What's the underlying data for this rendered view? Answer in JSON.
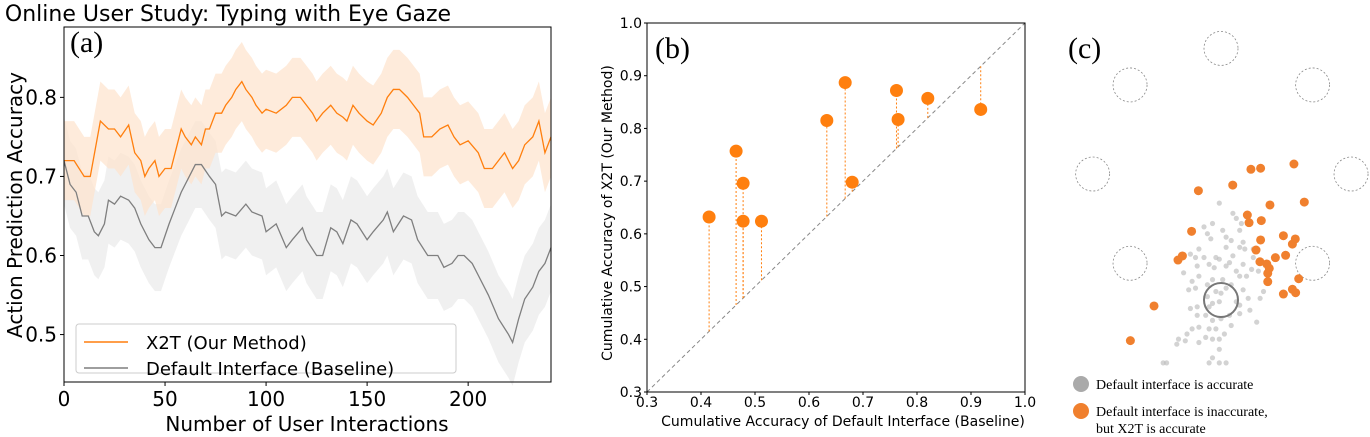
{
  "chart_data": [
    {
      "type": "line",
      "panel_label": "(a)",
      "title": "Online User Study: Typing with Eye Gaze",
      "xlabel": "Number of User Interactions",
      "ylabel": "Action Prediction Accuracy",
      "xlim": [
        0,
        241
      ],
      "ylim": [
        0.44,
        0.889
      ],
      "xticks": [
        "0",
        "50",
        "100",
        "150",
        "200"
      ],
      "yticks": [
        "0.5",
        "0.6",
        "0.7",
        "0.8"
      ],
      "legend_position": "lower-left",
      "series": [
        {
          "name": "X2T (Our Method)",
          "color": "#ff7f0e",
          "band_halfwidth": 0.05,
          "x": [
            0,
            5,
            10,
            13,
            18,
            22,
            25,
            28,
            32,
            35,
            38,
            40,
            42,
            45,
            47,
            50,
            53,
            56,
            58,
            60,
            63,
            65,
            68,
            70,
            72,
            75,
            78,
            80,
            83,
            85,
            88,
            90,
            93,
            95,
            98,
            100,
            105,
            110,
            113,
            117,
            120,
            123,
            125,
            128,
            132,
            135,
            138,
            140,
            143,
            146,
            150,
            153,
            157,
            160,
            163,
            166,
            170,
            173,
            176,
            178,
            182,
            186,
            190,
            193,
            196,
            200,
            205,
            208,
            212,
            215,
            218,
            222,
            225,
            228,
            232,
            235,
            238,
            241
          ],
          "y": [
            0.72,
            0.72,
            0.7,
            0.7,
            0.77,
            0.76,
            0.76,
            0.75,
            0.765,
            0.73,
            0.72,
            0.7,
            0.71,
            0.72,
            0.7,
            0.71,
            0.71,
            0.74,
            0.76,
            0.75,
            0.74,
            0.75,
            0.74,
            0.76,
            0.76,
            0.78,
            0.78,
            0.79,
            0.8,
            0.81,
            0.82,
            0.81,
            0.8,
            0.79,
            0.78,
            0.785,
            0.78,
            0.79,
            0.8,
            0.8,
            0.79,
            0.78,
            0.77,
            0.78,
            0.79,
            0.78,
            0.775,
            0.77,
            0.79,
            0.78,
            0.77,
            0.765,
            0.78,
            0.8,
            0.81,
            0.81,
            0.8,
            0.79,
            0.78,
            0.75,
            0.75,
            0.76,
            0.765,
            0.75,
            0.74,
            0.745,
            0.73,
            0.71,
            0.71,
            0.72,
            0.73,
            0.71,
            0.72,
            0.74,
            0.75,
            0.77,
            0.73,
            0.75
          ]
        },
        {
          "name": "Default Interface (Baseline)",
          "color": "#7f7f7f",
          "band_halfwidth": 0.055,
          "x": [
            0,
            3,
            6,
            9,
            12,
            15,
            17,
            20,
            22,
            25,
            28,
            32,
            35,
            38,
            42,
            45,
            48,
            52,
            55,
            58,
            62,
            65,
            68,
            72,
            75,
            78,
            80,
            85,
            90,
            93,
            98,
            100,
            105,
            110,
            113,
            118,
            120,
            125,
            128,
            132,
            135,
            138,
            142,
            145,
            150,
            153,
            158,
            160,
            163,
            168,
            172,
            175,
            180,
            185,
            188,
            192,
            195,
            198,
            202,
            205,
            210,
            215,
            220,
            222,
            225,
            228,
            232,
            235,
            238,
            241
          ],
          "y": [
            0.72,
            0.69,
            0.68,
            0.65,
            0.65,
            0.63,
            0.625,
            0.64,
            0.67,
            0.665,
            0.675,
            0.67,
            0.66,
            0.64,
            0.62,
            0.61,
            0.61,
            0.64,
            0.66,
            0.68,
            0.7,
            0.715,
            0.715,
            0.7,
            0.69,
            0.65,
            0.655,
            0.65,
            0.665,
            0.655,
            0.65,
            0.63,
            0.64,
            0.61,
            0.62,
            0.635,
            0.62,
            0.6,
            0.6,
            0.635,
            0.63,
            0.615,
            0.645,
            0.64,
            0.62,
            0.63,
            0.645,
            0.655,
            0.63,
            0.65,
            0.645,
            0.62,
            0.6,
            0.6,
            0.585,
            0.59,
            0.6,
            0.6,
            0.59,
            0.575,
            0.55,
            0.52,
            0.5,
            0.49,
            0.52,
            0.545,
            0.56,
            0.58,
            0.59,
            0.61
          ]
        }
      ]
    },
    {
      "type": "scatter",
      "panel_label": "(b)",
      "xlabel": "Cumulative Accuracy of Default Interface (Baseline)",
      "ylabel": "Cumulative Accuracy of X2T (Our Method)",
      "xlim": [
        0.3,
        1.0
      ],
      "ylim": [
        0.3,
        1.0
      ],
      "xticks": [
        "0.3",
        "0.4",
        "0.5",
        "0.6",
        "0.7",
        "0.8",
        "0.9",
        "1.0"
      ],
      "yticks": [
        "0.3",
        "0.4",
        "0.5",
        "0.6",
        "0.7",
        "0.8",
        "0.9",
        "1.0"
      ],
      "diagonal": "y = x",
      "color": "#ff7f0e",
      "points": [
        {
          "x": 0.415,
          "y": 0.632
        },
        {
          "x": 0.465,
          "y": 0.757
        },
        {
          "x": 0.478,
          "y": 0.696
        },
        {
          "x": 0.478,
          "y": 0.624
        },
        {
          "x": 0.512,
          "y": 0.624
        },
        {
          "x": 0.633,
          "y": 0.815
        },
        {
          "x": 0.667,
          "y": 0.887
        },
        {
          "x": 0.68,
          "y": 0.698
        },
        {
          "x": 0.762,
          "y": 0.872
        },
        {
          "x": 0.765,
          "y": 0.817
        },
        {
          "x": 0.82,
          "y": 0.857
        },
        {
          "x": 0.918,
          "y": 0.836
        }
      ]
    },
    {
      "type": "scatter",
      "panel_label": "(c)",
      "units": "target radii, relative to intended target, y up",
      "targets": [
        [
          0,
          14.8
        ],
        [
          -5.35,
          12.65
        ],
        [
          5.39,
          12.65
        ],
        [
          -7.55,
          7.41
        ],
        [
          7.65,
          7.41
        ],
        [
          -5.35,
          2.16
        ],
        [
          5.39,
          2.16
        ]
      ],
      "intended_target": [
        0,
        0
      ],
      "legend": [
        {
          "label": "Default interface is accurate",
          "color": "#aaaaaa"
        },
        {
          "label_line1": "Default interface is inaccurate,",
          "label_line2": "but X2T is accurate",
          "color": "#f0802e"
        }
      ],
      "gray_points": [
        [
          -0.1,
          5.7
        ],
        [
          0.7,
          5.1
        ],
        [
          0.9,
          4.8
        ],
        [
          1.2,
          4.5
        ],
        [
          1.1,
          4.1
        ],
        [
          -1.0,
          4.3
        ],
        [
          -0.5,
          4.5
        ],
        [
          -0.8,
          3.9
        ],
        [
          -0.6,
          3.6
        ],
        [
          0.1,
          4.1
        ],
        [
          0.3,
          3.7
        ],
        [
          -1.3,
          3.0
        ],
        [
          -1.5,
          2.5
        ],
        [
          -1.0,
          2.5
        ],
        [
          -0.7,
          2.1
        ],
        [
          -0.3,
          2.5
        ],
        [
          -0.1,
          2.4
        ],
        [
          -0.4,
          1.9
        ],
        [
          0.3,
          2.0
        ],
        [
          1.1,
          3.1
        ],
        [
          1.4,
          3.0
        ],
        [
          0.7,
          2.6
        ],
        [
          0.5,
          2.2
        ],
        [
          0.9,
          1.7
        ],
        [
          1.3,
          2.1
        ],
        [
          1.5,
          1.4
        ],
        [
          1.9,
          2.5
        ],
        [
          1.8,
          1.8
        ],
        [
          2.2,
          1.7
        ],
        [
          1.1,
          1.4
        ],
        [
          0.6,
          0.9
        ],
        [
          0.1,
          1.2
        ],
        [
          -0.5,
          1.2
        ],
        [
          -0.8,
          0.9
        ],
        [
          -1.3,
          1.4
        ],
        [
          -1.7,
          1.1
        ],
        [
          -1.9,
          0.6
        ],
        [
          -1.5,
          0.7
        ],
        [
          -0.3,
          0.5
        ],
        [
          0.0,
          0.4
        ],
        [
          0.3,
          0.7
        ],
        [
          -0.1,
          -0.1
        ],
        [
          -0.5,
          -0.2
        ],
        [
          -0.8,
          0.2
        ],
        [
          -0.7,
          -0.4
        ],
        [
          -1.4,
          -0.4
        ],
        [
          -1.8,
          -0.5
        ],
        [
          -1.4,
          -0.9
        ],
        [
          -0.9,
          -0.9
        ],
        [
          -0.5,
          -1.2
        ],
        [
          0.0,
          -1.1
        ],
        [
          0.5,
          -0.9
        ],
        [
          1.1,
          -0.8
        ],
        [
          1.7,
          -0.6
        ],
        [
          2.3,
          0.1
        ],
        [
          2.5,
          0.5
        ],
        [
          1.6,
          0.1
        ],
        [
          1.1,
          -0.3
        ],
        [
          2.1,
          -1.3
        ],
        [
          0.6,
          -1.5
        ],
        [
          0.2,
          -2.0
        ],
        [
          -0.3,
          -1.7
        ],
        [
          -0.7,
          -1.7
        ],
        [
          -1.3,
          -1.6
        ],
        [
          -1.7,
          -1.7
        ],
        [
          -2.0,
          -2.0
        ],
        [
          -2.5,
          -2.3
        ],
        [
          -2.1,
          -2.4
        ],
        [
          -2.6,
          -2.6
        ],
        [
          -0.9,
          -2.2
        ],
        [
          -0.5,
          -2.3
        ],
        [
          -0.1,
          -2.3
        ],
        [
          -1.3,
          -2.5
        ],
        [
          -0.1,
          -2.9
        ],
        [
          -0.5,
          -3.4
        ],
        [
          -0.7,
          -3.7
        ],
        [
          -0.1,
          -3.7
        ],
        [
          0.3,
          -3.7
        ],
        [
          -3.4,
          -3.7
        ],
        [
          -3.2,
          -3.7
        ],
        [
          0.9,
          -0.1
        ],
        [
          1.3,
          0.6
        ],
        [
          0.3,
          3.1
        ],
        [
          0.6,
          3.5
        ],
        [
          1.3,
          3.4
        ],
        [
          1.9,
          3.0
        ],
        [
          -1.8,
          2.7
        ],
        [
          -2.2,
          1.6
        ],
        [
          -1.4,
          2.0
        ]
      ],
      "orange_points": [
        [
          1.76,
          7.69
        ],
        [
          2.33,
          7.75
        ],
        [
          4.29,
          8.0
        ],
        [
          0.69,
          6.76
        ],
        [
          -1.33,
          6.43
        ],
        [
          2.88,
          5.59
        ],
        [
          4.9,
          5.76
        ],
        [
          1.55,
          5.0
        ],
        [
          1.65,
          4.55
        ],
        [
          2.37,
          4.67
        ],
        [
          -1.73,
          4.04
        ],
        [
          2.33,
          3.53
        ],
        [
          3.67,
          3.78
        ],
        [
          4.37,
          3.59
        ],
        [
          4.2,
          3.29
        ],
        [
          2.06,
          2.94
        ],
        [
          3.8,
          2.63
        ],
        [
          3.2,
          2.49
        ],
        [
          2.29,
          2.25
        ],
        [
          2.69,
          2.12
        ],
        [
          2.84,
          1.86
        ],
        [
          2.75,
          1.57
        ],
        [
          -2.53,
          2.35
        ],
        [
          -2.27,
          2.59
        ],
        [
          2.75,
          1.08
        ],
        [
          4.57,
          1.25
        ],
        [
          3.67,
          0.35
        ],
        [
          4.2,
          0.63
        ],
        [
          4.39,
          0.43
        ],
        [
          -3.94,
          -0.35
        ],
        [
          -5.33,
          -2.39
        ]
      ]
    }
  ]
}
